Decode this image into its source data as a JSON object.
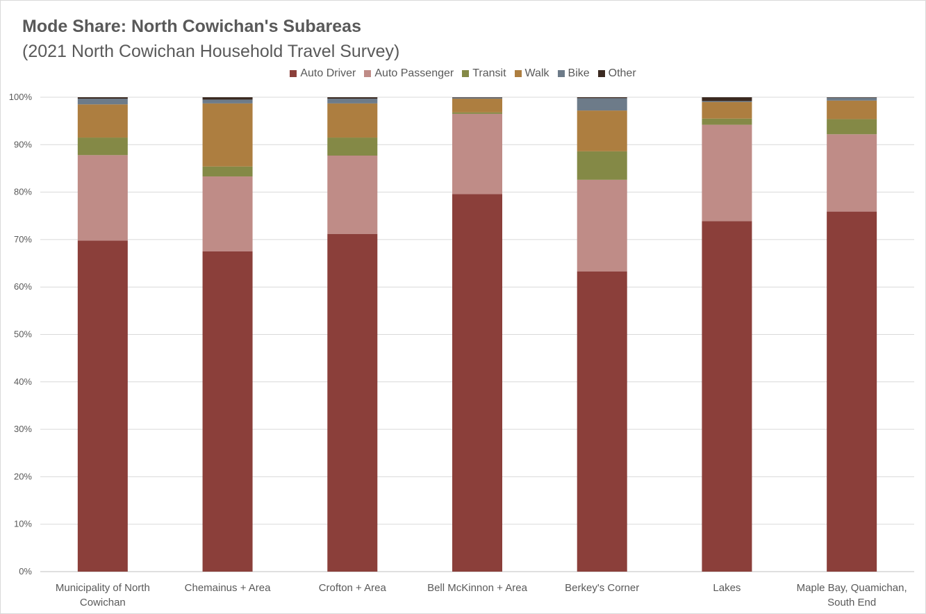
{
  "chart_data": {
    "type": "bar",
    "stacked": true,
    "title": "Mode Share: North Cowichan's Subareas",
    "subtitle": "(2021 North Cowichan Household Travel Survey)",
    "legend_position": "top",
    "grid": true,
    "ylim": [
      0,
      100
    ],
    "y_ticks": [
      "0%",
      "10%",
      "20%",
      "30%",
      "40%",
      "50%",
      "60%",
      "70%",
      "80%",
      "90%",
      "100%"
    ],
    "categories": [
      [
        "Municipality of North",
        "Cowichan"
      ],
      [
        "Chemainus + Area"
      ],
      [
        "Crofton + Area"
      ],
      [
        "Bell McKinnon + Area"
      ],
      [
        "Berkey's Corner"
      ],
      [
        "Lakes"
      ],
      [
        "Maple Bay, Quamichan,",
        "South End"
      ]
    ],
    "series": [
      {
        "name": "Auto Driver",
        "color": "#8b3f3a",
        "values": [
          69.8,
          67.5,
          71.2,
          79.6,
          63.3,
          73.9,
          75.9
        ]
      },
      {
        "name": "Auto Passenger",
        "color": "#bf8c87",
        "values": [
          18.0,
          15.8,
          16.5,
          16.9,
          19.3,
          20.3,
          16.3
        ]
      },
      {
        "name": "Transit",
        "color": "#848946",
        "values": [
          3.7,
          2.1,
          3.8,
          0.3,
          6.0,
          1.3,
          3.2
        ]
      },
      {
        "name": "Walk",
        "color": "#ad7e40",
        "values": [
          7.0,
          13.3,
          7.2,
          2.9,
          8.6,
          3.5,
          3.9
        ]
      },
      {
        "name": "Bike",
        "color": "#6d7b89",
        "values": [
          1.2,
          0.8,
          1.0,
          0.2,
          2.6,
          0.2,
          0.6
        ]
      },
      {
        "name": "Other",
        "color": "#3b2a21",
        "values": [
          0.3,
          0.5,
          0.3,
          0.1,
          0.2,
          0.8,
          0.1
        ]
      }
    ]
  }
}
